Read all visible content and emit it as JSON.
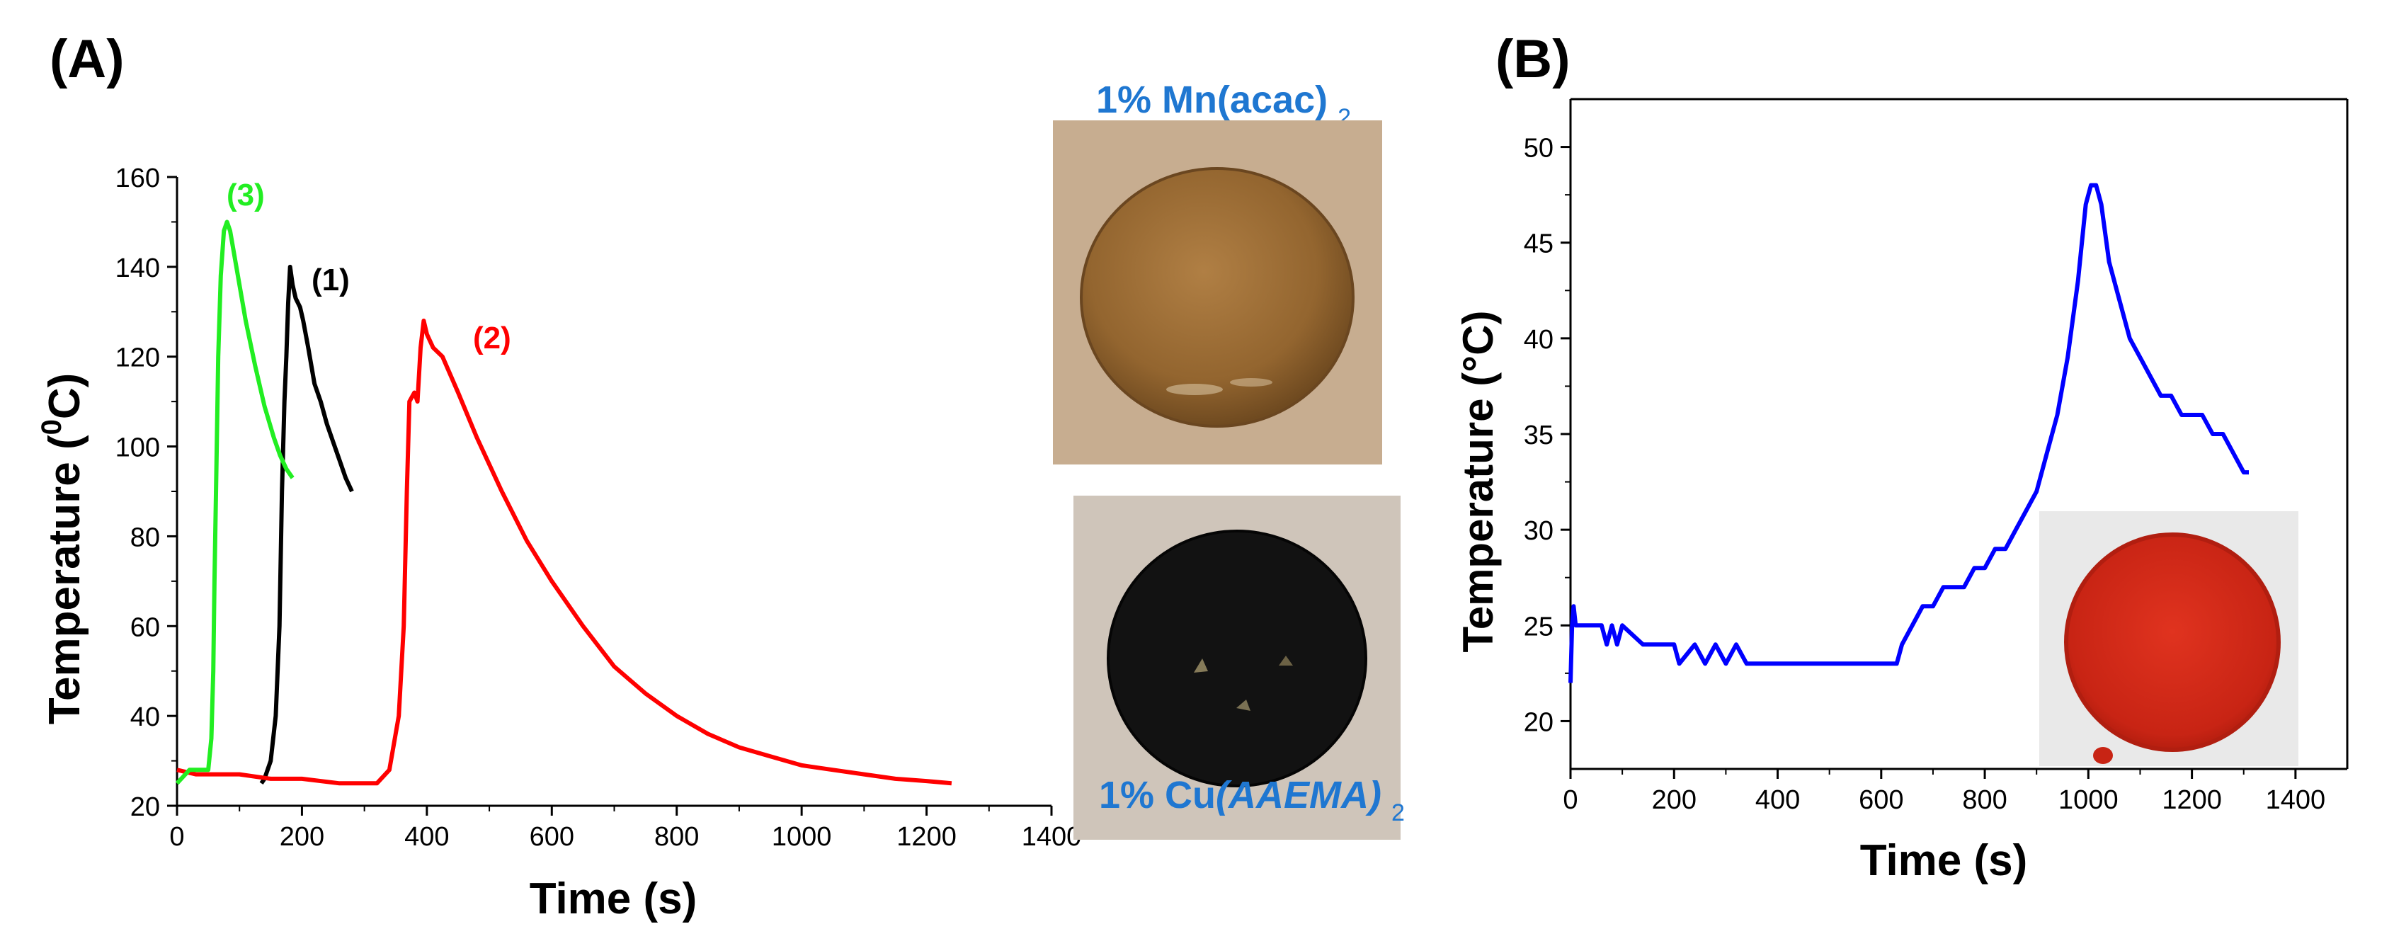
{
  "panels": {
    "a_label": "(A)",
    "b_label": "(B)"
  },
  "chart_data": [
    {
      "type": "line",
      "panel": "(A)",
      "xlabel": "Time (s)",
      "ylabel_main": "Temperature (",
      "ylabel_sup": "0",
      "ylabel_tail": "C)",
      "xlim": [
        0,
        1400
      ],
      "ylim": [
        20,
        160
      ],
      "x_ticks": [
        "0",
        "200",
        "400",
        "600",
        "800",
        "1000",
        "1200",
        "1400"
      ],
      "y_ticks": [
        "20",
        "40",
        "60",
        "80",
        "100",
        "120",
        "140",
        "160"
      ],
      "series": [
        {
          "name": "(1)",
          "color": "#000000",
          "points": [
            [
              135,
              25
            ],
            [
              140,
              26
            ],
            [
              150,
              30
            ],
            [
              158,
              40
            ],
            [
              164,
              60
            ],
            [
              168,
              90
            ],
            [
              172,
              110
            ],
            [
              175,
              120
            ],
            [
              178,
              132
            ],
            [
              181,
              140
            ],
            [
              185,
              136
            ],
            [
              190,
              133
            ],
            [
              197,
              131
            ],
            [
              202,
              128
            ],
            [
              210,
              122
            ],
            [
              220,
              114
            ],
            [
              230,
              110
            ],
            [
              240,
              105
            ],
            [
              250,
              101
            ],
            [
              260,
              97
            ],
            [
              270,
              93
            ],
            [
              280,
              90
            ]
          ]
        },
        {
          "name": "(2)",
          "color": "#ff0000",
          "points": [
            [
              0,
              28
            ],
            [
              30,
              27
            ],
            [
              60,
              27
            ],
            [
              100,
              27
            ],
            [
              150,
              26
            ],
            [
              200,
              26
            ],
            [
              260,
              25
            ],
            [
              300,
              25
            ],
            [
              320,
              25
            ],
            [
              340,
              28
            ],
            [
              355,
              40
            ],
            [
              363,
              60
            ],
            [
              368,
              90
            ],
            [
              372,
              110
            ],
            [
              380,
              112
            ],
            [
              385,
              110
            ],
            [
              390,
              122
            ],
            [
              395,
              128
            ],
            [
              400,
              125
            ],
            [
              410,
              122
            ],
            [
              425,
              120
            ],
            [
              450,
              112
            ],
            [
              480,
              102
            ],
            [
              520,
              90
            ],
            [
              560,
              79
            ],
            [
              600,
              70
            ],
            [
              650,
              60
            ],
            [
              700,
              51
            ],
            [
              750,
              45
            ],
            [
              800,
              40
            ],
            [
              850,
              36
            ],
            [
              900,
              33
            ],
            [
              950,
              31
            ],
            [
              1000,
              29
            ],
            [
              1050,
              28
            ],
            [
              1100,
              27
            ],
            [
              1150,
              26
            ],
            [
              1200,
              25.5
            ],
            [
              1240,
              25
            ]
          ]
        },
        {
          "name": "(3)",
          "color": "#22ee22",
          "points": [
            [
              0,
              25
            ],
            [
              20,
              28
            ],
            [
              40,
              28
            ],
            [
              50,
              28
            ],
            [
              55,
              35
            ],
            [
              58,
              50
            ],
            [
              60,
              70
            ],
            [
              63,
              95
            ],
            [
              66,
              120
            ],
            [
              70,
              138
            ],
            [
              75,
              148
            ],
            [
              80,
              150
            ],
            [
              85,
              148
            ],
            [
              95,
              140
            ],
            [
              110,
              128
            ],
            [
              125,
              118
            ],
            [
              140,
              109
            ],
            [
              155,
              102
            ],
            [
              165,
              98
            ],
            [
              175,
              95
            ],
            [
              185,
              93
            ]
          ]
        }
      ]
    },
    {
      "type": "line",
      "panel": "(B)",
      "xlabel": "Time (s)",
      "ylabel": "Temperature (°C)",
      "xlim": [
        0,
        1500
      ],
      "ylim": [
        17.5,
        52.5
      ],
      "x_ticks": [
        "0",
        "200",
        "400",
        "600",
        "800",
        "1000",
        "1200",
        "1400"
      ],
      "y_ticks": [
        "20",
        "25",
        "30",
        "35",
        "40",
        "45",
        "50"
      ],
      "series": [
        {
          "name": "temperature",
          "color": "#0000ff",
          "points": [
            [
              0,
              22
            ],
            [
              3,
              25
            ],
            [
              6,
              26
            ],
            [
              10,
              25
            ],
            [
              60,
              25
            ],
            [
              70,
              24
            ],
            [
              80,
              25
            ],
            [
              90,
              24
            ],
            [
              100,
              25
            ],
            [
              140,
              24
            ],
            [
              200,
              24
            ],
            [
              210,
              23
            ],
            [
              240,
              24
            ],
            [
              260,
              23
            ],
            [
              280,
              24
            ],
            [
              300,
              23
            ],
            [
              320,
              24
            ],
            [
              340,
              23
            ],
            [
              400,
              23
            ],
            [
              500,
              23
            ],
            [
              600,
              23
            ],
            [
              630,
              23
            ],
            [
              640,
              24
            ],
            [
              660,
              25
            ],
            [
              680,
              26
            ],
            [
              700,
              26
            ],
            [
              720,
              27
            ],
            [
              760,
              27
            ],
            [
              780,
              28
            ],
            [
              800,
              28
            ],
            [
              820,
              29
            ],
            [
              840,
              29
            ],
            [
              860,
              30
            ],
            [
              880,
              31
            ],
            [
              900,
              32
            ],
            [
              920,
              34
            ],
            [
              940,
              36
            ],
            [
              960,
              39
            ],
            [
              980,
              43
            ],
            [
              995,
              47
            ],
            [
              1005,
              48
            ],
            [
              1015,
              48
            ],
            [
              1025,
              47
            ],
            [
              1040,
              44
            ],
            [
              1060,
              42
            ],
            [
              1080,
              40
            ],
            [
              1100,
              39
            ],
            [
              1120,
              38
            ],
            [
              1140,
              37
            ],
            [
              1160,
              37
            ],
            [
              1180,
              36
            ],
            [
              1200,
              36
            ],
            [
              1220,
              36
            ],
            [
              1240,
              35
            ],
            [
              1260,
              35
            ],
            [
              1280,
              34
            ],
            [
              1300,
              33
            ],
            [
              1310,
              33
            ]
          ]
        }
      ]
    }
  ],
  "annotations": {
    "a_series_labels": [
      {
        "text": "(3)",
        "color": "#22ee22"
      },
      {
        "text": "(1)",
        "color": "#000000"
      },
      {
        "text": "(2)",
        "color": "#ff0000"
      }
    ]
  },
  "photos": {
    "mn": {
      "caption": "1% Mn(acac)",
      "caption_sub": "2",
      "background": "#c3a88a",
      "disc": "#9a6d36"
    },
    "cu": {
      "caption_pre": "1% Cu",
      "caption_ital": "(AAEMA)",
      "caption_sub": "2",
      "background": "#d0c6bc",
      "disc": "#121212"
    },
    "red": {
      "background": "#e6e6e6",
      "disc": "#d62a1a"
    }
  }
}
